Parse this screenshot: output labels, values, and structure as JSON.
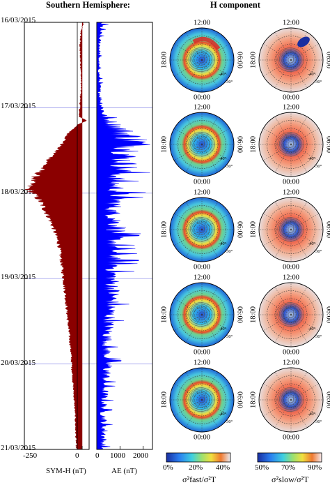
{
  "headers": {
    "left": "Southern Hemisphere:",
    "right": "H component"
  },
  "chart_data": [
    {
      "type": "area",
      "name": "symh-panel",
      "xlabel": "SYM-H (nT)",
      "x_ticks": [
        "-250",
        "0"
      ],
      "xlim": [
        -250,
        30
      ],
      "y_dates": [
        "16/03/2015",
        "17/03/2015",
        "18/03/2015",
        "19/03/2015",
        "20/03/2015",
        "21/03/2015"
      ],
      "orientation": "time runs downward",
      "color": "#8b0000",
      "profile": {
        "t_days": [
          0.0,
          0.1,
          0.2,
          0.3,
          0.4,
          0.5,
          0.6,
          0.7,
          0.8,
          0.9,
          1.0,
          1.1,
          1.15,
          1.2,
          1.25,
          1.3,
          1.4,
          1.5,
          1.6,
          1.7,
          1.8,
          1.9,
          1.95,
          2.0,
          2.1,
          2.2,
          2.3,
          2.4,
          2.6,
          2.8,
          3.0,
          3.2,
          3.4,
          3.6,
          3.8,
          4.0,
          4.2,
          4.4,
          4.6,
          4.8,
          5.0
        ],
        "values": [
          5,
          -5,
          -8,
          -10,
          -8,
          -6,
          -5,
          -4,
          -5,
          -8,
          -10,
          -15,
          20,
          -20,
          -40,
          -60,
          -80,
          -110,
          -140,
          -170,
          -200,
          -225,
          -234,
          -210,
          -180,
          -160,
          -140,
          -125,
          -100,
          -90,
          -80,
          -72,
          -65,
          -58,
          -50,
          -45,
          -40,
          -35,
          -30,
          -28,
          -25
        ]
      }
    },
    {
      "type": "area",
      "name": "ae-panel",
      "xlabel": "AE (nT)",
      "x_ticks": [
        "0",
        "1000",
        "2000"
      ],
      "xlim": [
        0,
        2400
      ],
      "orientation": "time runs downward",
      "color": "#0000ff",
      "profile": {
        "t_days": [
          0.0,
          0.1,
          0.2,
          0.3,
          0.4,
          0.5,
          0.6,
          0.7,
          0.8,
          0.9,
          1.0,
          1.1,
          1.2,
          1.3,
          1.4,
          1.5,
          1.6,
          1.7,
          1.8,
          1.9,
          2.0,
          2.2,
          2.4,
          2.6,
          2.8,
          3.0,
          3.2,
          3.4,
          3.6,
          3.8,
          4.0,
          4.2,
          4.4,
          4.6,
          4.8,
          5.0
        ],
        "values": [
          300,
          200,
          150,
          150,
          120,
          100,
          120,
          150,
          150,
          200,
          300,
          400,
          900,
          1500,
          2100,
          1800,
          1400,
          1500,
          1100,
          900,
          1200,
          800,
          1100,
          900,
          1000,
          800,
          850,
          700,
          600,
          500,
          600,
          450,
          400,
          350,
          400,
          300
        ]
      }
    }
  ],
  "polar_maps": {
    "hour_labels": {
      "top": "12:00",
      "bottom": "00:00",
      "left": "18:00",
      "right": "06:00"
    },
    "lat_labels": [
      "-40°",
      "-50°",
      "-30°"
    ],
    "rows": 5,
    "columns": [
      "fast",
      "slow"
    ]
  },
  "colorbars": [
    {
      "name": "fast",
      "ticks": [
        "0%",
        "20%",
        "40%"
      ],
      "label": "σ²fast/σ²T"
    },
    {
      "name": "slow",
      "ticks": [
        "50%",
        "70%",
        "90%"
      ],
      "label": "σ²slow/σ²T"
    }
  ],
  "colors": {
    "symh": "#8b0000",
    "ae": "#0000ff",
    "gridline": "#8a8ae8"
  }
}
